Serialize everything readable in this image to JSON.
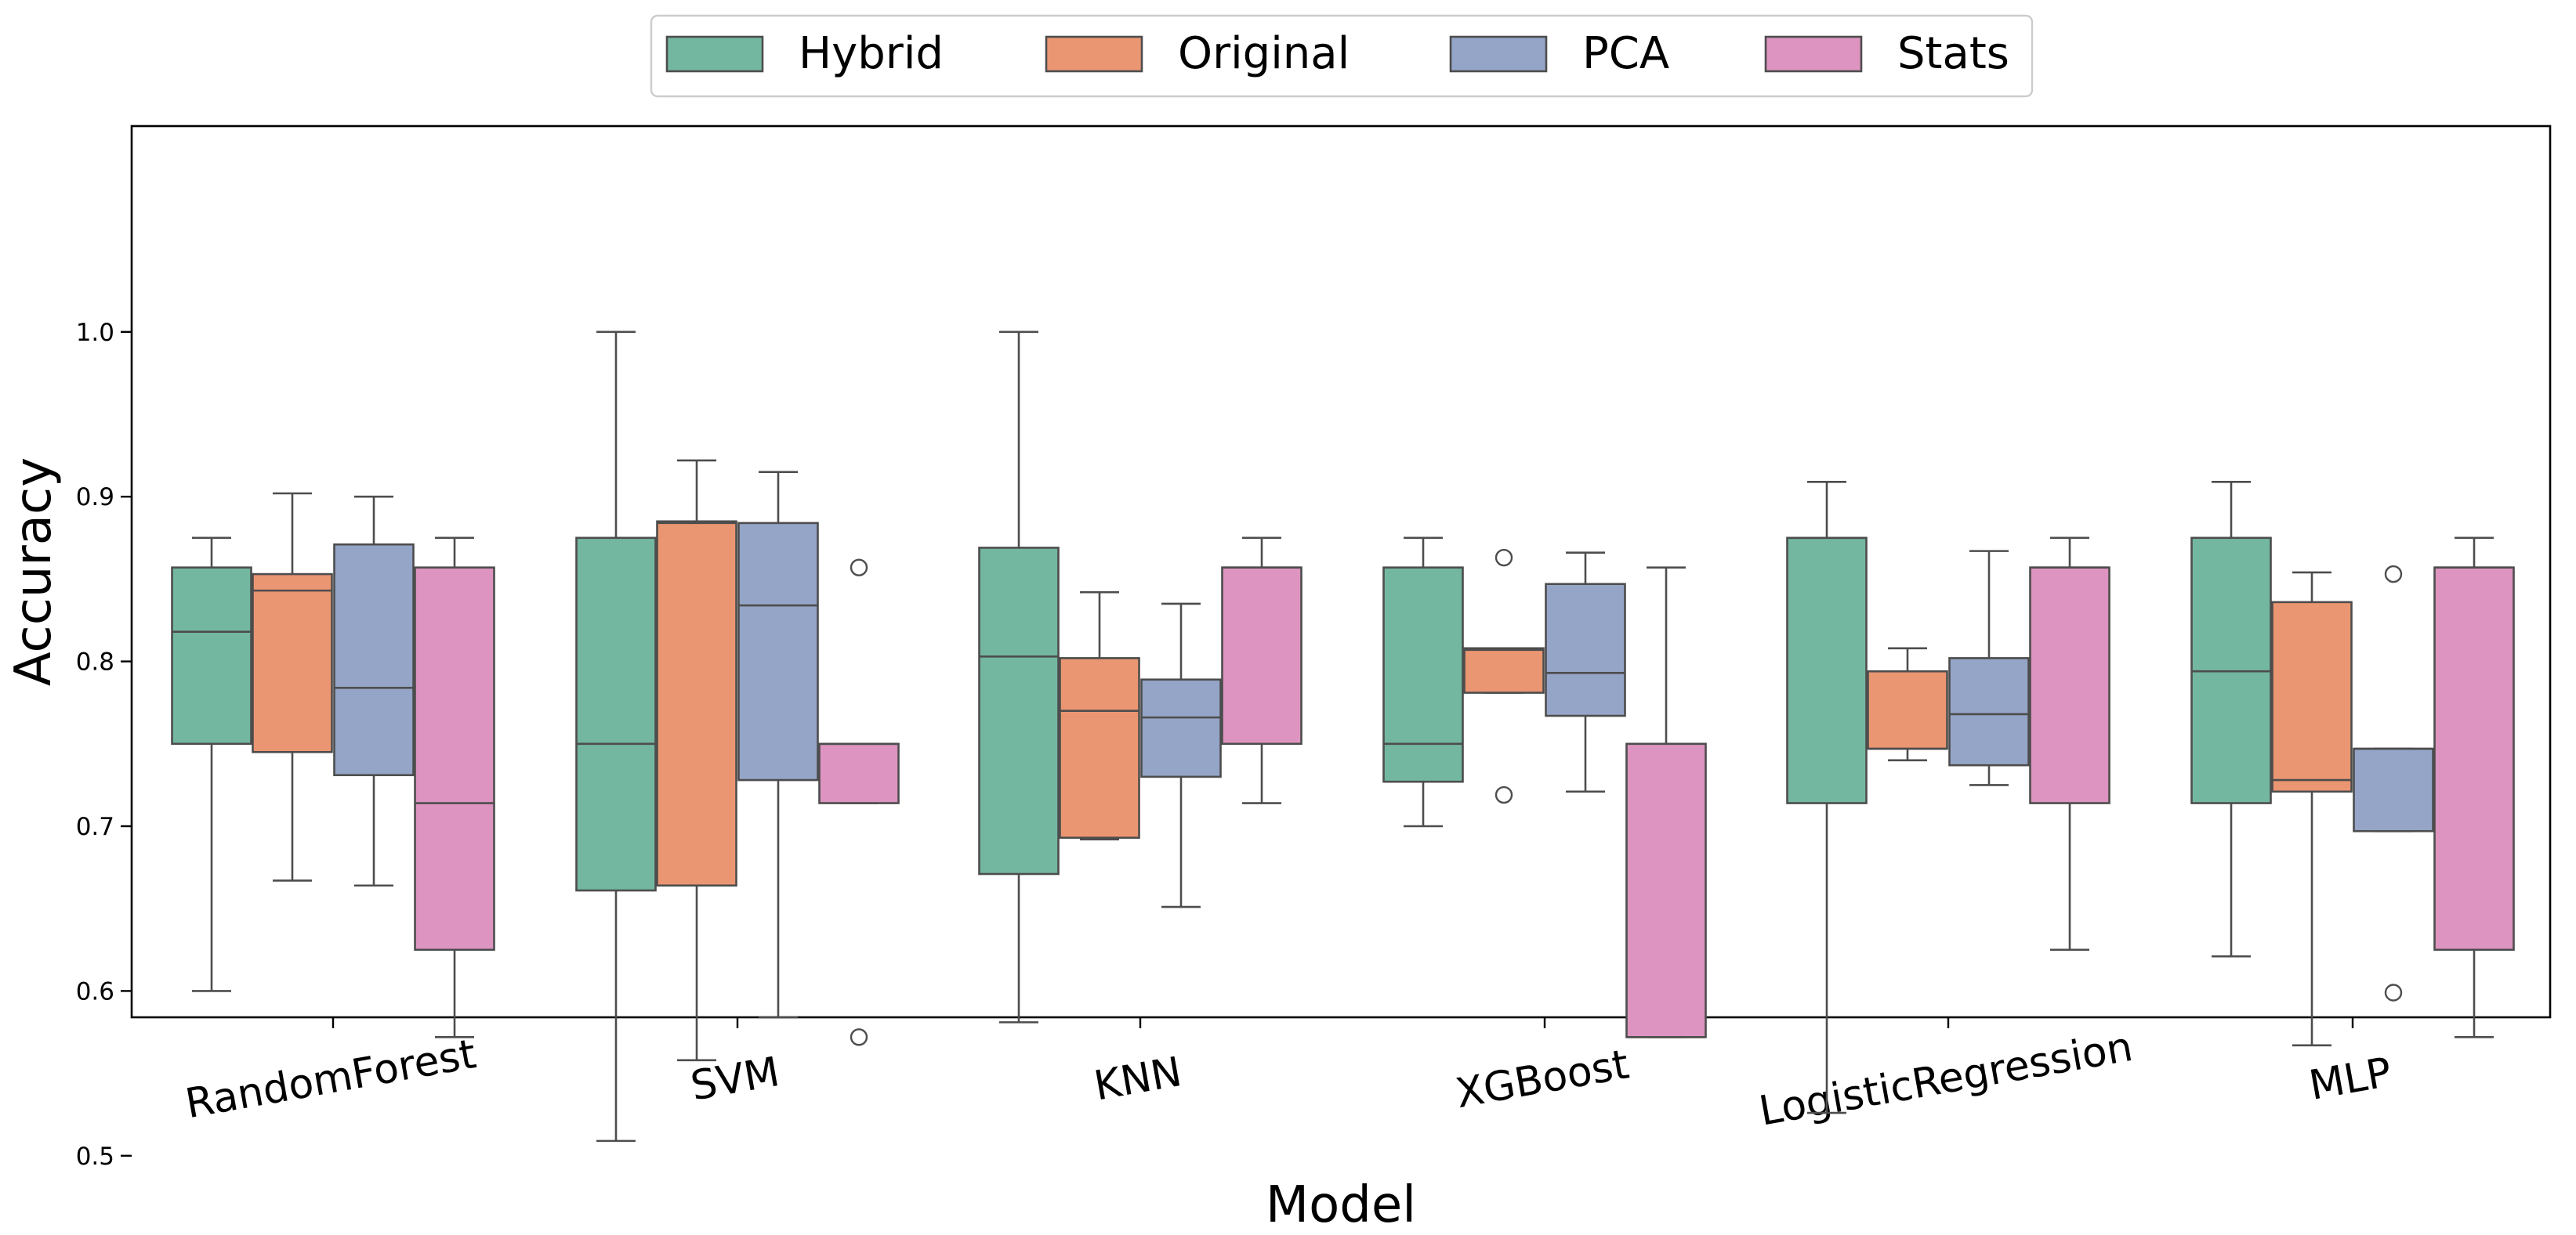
{
  "chart_data": {
    "type": "box",
    "xlabel": "Model",
    "ylabel": "Accuracy",
    "ylim": [
      0.485,
      1.025
    ],
    "yticks": [
      "0.5",
      "0.6",
      "0.7",
      "0.8",
      "0.9",
      "1.0"
    ],
    "categories": [
      "RandomForest",
      "SVM",
      "KNN",
      "XGBoost",
      "LogisticRegression",
      "MLP"
    ],
    "legend": {
      "position": "top-center",
      "entries": [
        {
          "name": "Hybrid",
          "color": "#73b7a0"
        },
        {
          "name": "Original",
          "color": "#eb9672"
        },
        {
          "name": "PCA",
          "color": "#95a5c7"
        },
        {
          "name": "Stats",
          "color": "#dd94c0"
        }
      ]
    },
    "series": [
      {
        "name": "Hybrid",
        "color": "#73b7a0",
        "boxes": [
          {
            "whisker_low": 0.6,
            "q1": 0.75,
            "median": 0.818,
            "q3": 0.857,
            "whisker_high": 0.875,
            "outliers": []
          },
          {
            "whisker_low": 0.509,
            "q1": 0.661,
            "median": 0.75,
            "q3": 0.875,
            "whisker_high": 1.0,
            "outliers": []
          },
          {
            "whisker_low": 0.581,
            "q1": 0.671,
            "median": 0.803,
            "q3": 0.869,
            "whisker_high": 1.0,
            "outliers": []
          },
          {
            "whisker_low": 0.7,
            "q1": 0.727,
            "median": 0.75,
            "q3": 0.857,
            "whisker_high": 0.875,
            "outliers": []
          },
          {
            "whisker_low": 0.526,
            "q1": 0.714,
            "median": 0.875,
            "q3": 0.875,
            "whisker_high": 0.909,
            "outliers": []
          },
          {
            "whisker_low": 0.621,
            "q1": 0.714,
            "median": 0.794,
            "q3": 0.875,
            "whisker_high": 0.909,
            "outliers": []
          }
        ]
      },
      {
        "name": "Original",
        "color": "#eb9672",
        "boxes": [
          {
            "whisker_low": 0.667,
            "q1": 0.745,
            "median": 0.843,
            "q3": 0.853,
            "whisker_high": 0.902,
            "outliers": []
          },
          {
            "whisker_low": 0.558,
            "q1": 0.664,
            "median": 0.884,
            "q3": 0.885,
            "whisker_high": 0.922,
            "outliers": []
          },
          {
            "whisker_low": 0.692,
            "q1": 0.693,
            "median": 0.77,
            "q3": 0.802,
            "whisker_high": 0.842,
            "outliers": []
          },
          {
            "whisker_low": 0.781,
            "q1": 0.781,
            "median": 0.807,
            "q3": 0.808,
            "whisker_high": 0.808,
            "outliers": [
              0.863,
              0.719
            ]
          },
          {
            "whisker_low": 0.74,
            "q1": 0.747,
            "median": 0.747,
            "q3": 0.794,
            "whisker_high": 0.808,
            "outliers": []
          },
          {
            "whisker_low": 0.567,
            "q1": 0.721,
            "median": 0.728,
            "q3": 0.836,
            "whisker_high": 0.854,
            "outliers": []
          }
        ]
      },
      {
        "name": "PCA",
        "color": "#95a5c7",
        "boxes": [
          {
            "whisker_low": 0.664,
            "q1": 0.731,
            "median": 0.784,
            "q3": 0.871,
            "whisker_high": 0.9,
            "outliers": []
          },
          {
            "whisker_low": 0.584,
            "q1": 0.728,
            "median": 0.834,
            "q3": 0.884,
            "whisker_high": 0.915,
            "outliers": []
          },
          {
            "whisker_low": 0.651,
            "q1": 0.73,
            "median": 0.766,
            "q3": 0.789,
            "whisker_high": 0.835,
            "outliers": []
          },
          {
            "whisker_low": 0.721,
            "q1": 0.767,
            "median": 0.793,
            "q3": 0.847,
            "whisker_high": 0.866,
            "outliers": []
          },
          {
            "whisker_low": 0.725,
            "q1": 0.737,
            "median": 0.768,
            "q3": 0.802,
            "whisker_high": 0.867,
            "outliers": []
          },
          {
            "whisker_low": 0.697,
            "q1": 0.697,
            "median": 0.747,
            "q3": 0.747,
            "whisker_high": 0.747,
            "outliers": [
              0.853,
              0.599
            ]
          }
        ]
      },
      {
        "name": "Stats",
        "color": "#dd94c0",
        "boxes": [
          {
            "whisker_low": 0.572,
            "q1": 0.625,
            "median": 0.714,
            "q3": 0.857,
            "whisker_high": 0.875,
            "outliers": []
          },
          {
            "whisker_low": 0.714,
            "q1": 0.714,
            "median": 0.75,
            "q3": 0.75,
            "whisker_high": 0.75,
            "outliers": [
              0.857,
              0.572
            ]
          },
          {
            "whisker_low": 0.714,
            "q1": 0.75,
            "median": 0.857,
            "q3": 0.857,
            "whisker_high": 0.875,
            "outliers": []
          },
          {
            "whisker_low": 0.572,
            "q1": 0.572,
            "median": 0.572,
            "q3": 0.75,
            "whisker_high": 0.857,
            "outliers": []
          },
          {
            "whisker_low": 0.625,
            "q1": 0.714,
            "median": 0.857,
            "q3": 0.857,
            "whisker_high": 0.875,
            "outliers": []
          },
          {
            "whisker_low": 0.572,
            "q1": 0.625,
            "median": 0.857,
            "q3": 0.857,
            "whisker_high": 0.875,
            "outliers": []
          }
        ]
      }
    ]
  }
}
